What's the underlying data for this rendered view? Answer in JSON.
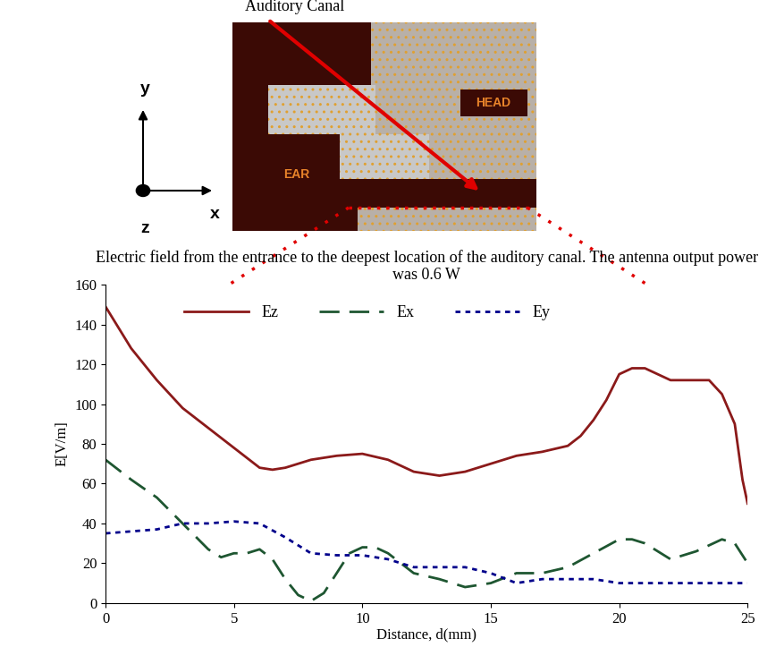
{
  "diagram": {
    "caption": "Auditory Canal",
    "regions": [
      "HEAD",
      "EAR"
    ],
    "axes": [
      "x",
      "y",
      "z"
    ]
  },
  "chart_data": {
    "type": "line",
    "title": "Electric field from the entrance to the deepest location of the auditory canal. The antenna output power was 0.6 W",
    "x_label": "Distance, d(mm)",
    "y_label": "E[V/m]",
    "xlim": [
      0,
      25
    ],
    "xticks": [
      0,
      5,
      10,
      15,
      20,
      25
    ],
    "ylim": [
      0,
      160
    ],
    "yticks": [
      0,
      20,
      40,
      60,
      80,
      100,
      120,
      140,
      160
    ],
    "legend": "upper left",
    "series": [
      {
        "name": "Ez",
        "color": "#8b1a1a",
        "line_style": "solid",
        "x": [
          0,
          1,
          2,
          3,
          4,
          5,
          6,
          6.5,
          7,
          8,
          9,
          10,
          11,
          12,
          13,
          14,
          15,
          16,
          17,
          18,
          18.5,
          19,
          19.5,
          20,
          20.5,
          21,
          22,
          23,
          23.5,
          24,
          24.5,
          24.8,
          25
        ],
        "values": [
          149,
          128,
          112,
          98,
          88,
          78,
          68,
          67,
          68,
          72,
          74,
          75,
          72,
          66,
          64,
          66,
          70,
          74,
          76,
          79,
          84,
          92,
          102,
          115,
          118,
          118,
          112,
          112,
          112,
          105,
          90,
          62,
          50
        ]
      },
      {
        "name": "Ex",
        "color": "#1e5631",
        "line_style": "dashed",
        "x": [
          0,
          1,
          2,
          3,
          4,
          4.5,
          5,
          5.5,
          6,
          6.5,
          7,
          7.5,
          8,
          8.5,
          9,
          9.5,
          10,
          10.5,
          11,
          12,
          13,
          14,
          15,
          16,
          17,
          18,
          19,
          20,
          20.5,
          21,
          22,
          23,
          24,
          24.5,
          25
        ],
        "values": [
          72,
          62,
          53,
          40,
          27,
          23,
          25,
          25,
          27,
          22,
          12,
          4,
          1,
          5,
          15,
          25,
          28,
          28,
          25,
          15,
          12,
          8,
          10,
          15,
          15,
          18,
          25,
          32,
          32,
          30,
          22,
          26,
          32,
          30,
          20
        ]
      },
      {
        "name": "Ey",
        "color": "#00008b",
        "line_style": "dotted",
        "x": [
          0,
          1,
          2,
          3,
          4,
          5,
          6,
          7,
          8,
          9,
          10,
          11,
          12,
          13,
          14,
          15,
          16,
          17,
          18,
          19,
          20,
          25
        ],
        "values": [
          35,
          36,
          37,
          40,
          40,
          41,
          40,
          33,
          25,
          24,
          24,
          22,
          18,
          18,
          18,
          15,
          10,
          12,
          12,
          12,
          10,
          10
        ]
      }
    ]
  }
}
